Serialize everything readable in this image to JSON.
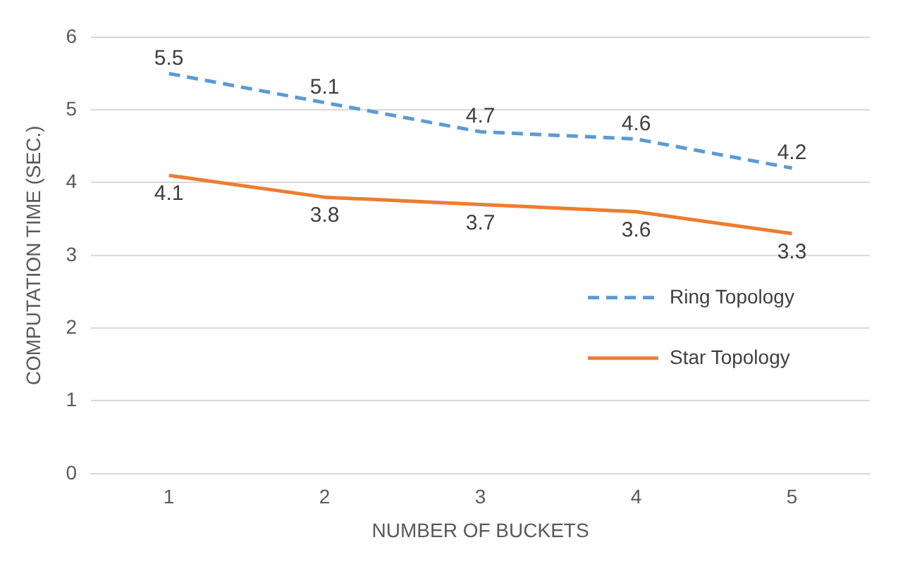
{
  "chart_data": {
    "type": "line",
    "xlabel": "NUMBER OF BUCKETS",
    "ylabel": "COMPUTATION TIME (SEC.)",
    "categories": [
      "1",
      "2",
      "3",
      "4",
      "5"
    ],
    "series": [
      {
        "name": "Ring Topology",
        "color": "#5b9bd5",
        "line_style": "dashed",
        "values": [
          5.5,
          5.1,
          4.7,
          4.6,
          4.2
        ]
      },
      {
        "name": "Star Topology",
        "color": "#ed7d31",
        "line_style": "solid",
        "values": [
          4.1,
          3.8,
          3.7,
          3.6,
          3.3
        ]
      }
    ],
    "ylim": [
      0,
      6
    ],
    "yticks": [
      0,
      1,
      2,
      3,
      4,
      5,
      6
    ],
    "grid": "y",
    "legend": "right",
    "marker": "none",
    "data_labels": true
  }
}
